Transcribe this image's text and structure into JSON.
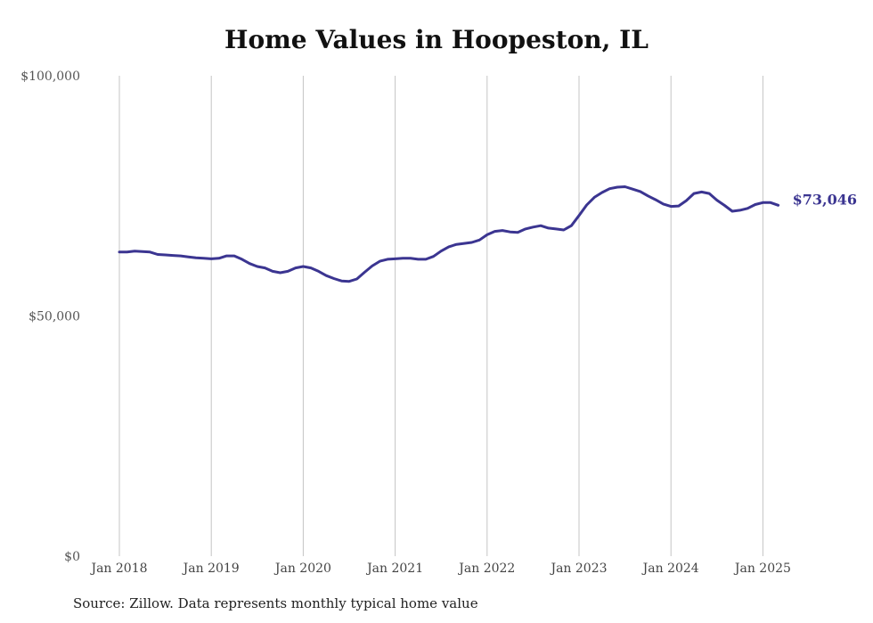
{
  "chart_data": {
    "type": "line",
    "title": "Home Values in Hoopeston, IL",
    "xlabel": "",
    "ylabel": "",
    "ylim": [
      0,
      100000
    ],
    "y_ticks": [
      0,
      50000,
      100000
    ],
    "y_tick_labels": [
      "$0",
      "$50,000",
      "$100,000"
    ],
    "x_ticks": [
      "2018-01",
      "2019-01",
      "2020-01",
      "2021-01",
      "2022-01",
      "2023-01",
      "2024-01",
      "2025-01"
    ],
    "x_tick_labels": [
      "Jan 2018",
      "Jan 2019",
      "Jan 2020",
      "Jan 2021",
      "Jan 2022",
      "Jan 2023",
      "Jan 2024",
      "Jan 2025"
    ],
    "grid": "vertical lines at January of each year",
    "line_color": "#3b3591",
    "end_label": "$73,046",
    "series": [
      {
        "x": [
          "2018-01",
          "2018-02",
          "2018-03",
          "2018-04",
          "2018-05",
          "2018-06",
          "2018-07",
          "2018-08",
          "2018-09",
          "2018-10",
          "2018-11",
          "2018-12",
          "2019-01",
          "2019-02",
          "2019-03",
          "2019-04",
          "2019-05",
          "2019-06",
          "2019-07",
          "2019-08",
          "2019-09",
          "2019-10",
          "2019-11",
          "2019-12",
          "2020-01",
          "2020-02",
          "2020-03",
          "2020-04",
          "2020-05",
          "2020-06",
          "2020-07",
          "2020-08",
          "2020-09",
          "2020-10",
          "2020-11",
          "2020-12",
          "2021-01",
          "2021-02",
          "2021-03",
          "2021-04",
          "2021-05",
          "2021-06",
          "2021-07",
          "2021-08",
          "2021-09",
          "2021-10",
          "2021-11",
          "2021-12",
          "2022-01",
          "2022-02",
          "2022-03",
          "2022-04",
          "2022-05",
          "2022-06",
          "2022-07",
          "2022-08",
          "2022-09",
          "2022-10",
          "2022-11",
          "2022-12",
          "2023-01",
          "2023-02",
          "2023-03",
          "2023-04",
          "2023-05",
          "2023-06",
          "2023-07",
          "2023-08",
          "2023-09",
          "2023-10",
          "2023-11",
          "2023-12",
          "2024-01",
          "2024-02",
          "2024-03",
          "2024-04",
          "2024-05",
          "2024-06",
          "2024-07",
          "2024-08",
          "2024-09",
          "2024-10",
          "2024-11",
          "2024-12",
          "2025-01",
          "2025-02",
          "2025-03"
        ],
        "values": [
          63300,
          63300,
          63500,
          63400,
          63300,
          62800,
          62700,
          62600,
          62500,
          62300,
          62100,
          62000,
          61900,
          62000,
          62500,
          62500,
          61800,
          60900,
          60300,
          60000,
          59300,
          59000,
          59300,
          60000,
          60300,
          60000,
          59300,
          58400,
          57800,
          57300,
          57200,
          57700,
          59100,
          60400,
          61400,
          61800,
          61900,
          62000,
          62000,
          61800,
          61800,
          62400,
          63500,
          64400,
          64900,
          65100,
          65300,
          65800,
          66900,
          67600,
          67800,
          67500,
          67400,
          68100,
          68500,
          68800,
          68300,
          68100,
          67900,
          68800,
          70900,
          73100,
          74700,
          75700,
          76500,
          76800,
          76900,
          76400,
          75900,
          75000,
          74200,
          73300,
          72800,
          72900,
          74000,
          75500,
          75800,
          75500,
          74100,
          73000,
          71800,
          72000,
          72400,
          73200,
          73600,
          73600,
          73046
        ]
      }
    ],
    "source": "Source: Zillow. Data represents monthly typical home value"
  }
}
